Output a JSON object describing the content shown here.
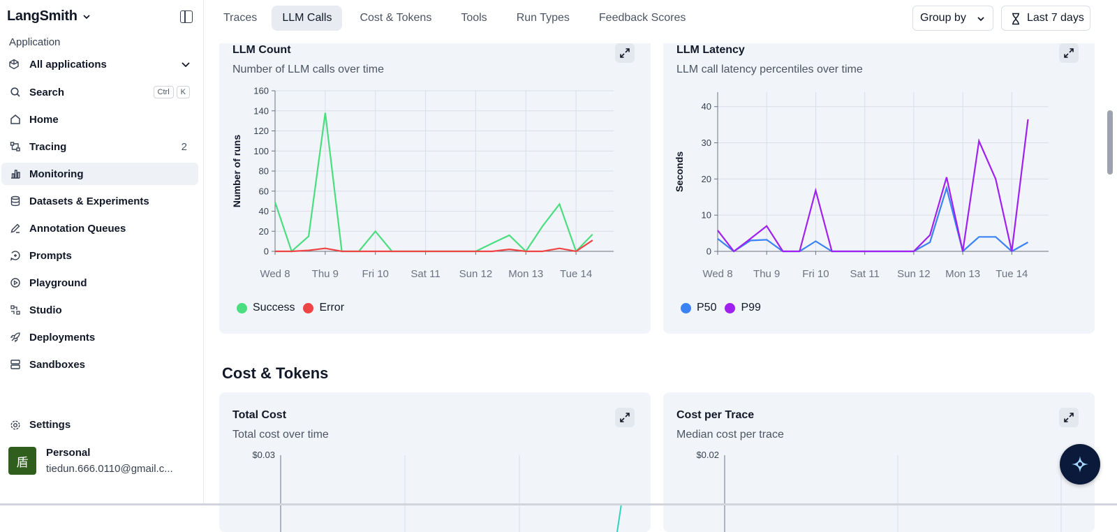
{
  "sidebar": {
    "brand": "LangSmith",
    "application_label": "Application",
    "application_value": "All applications",
    "items": [
      {
        "label": "Search",
        "shortcut": [
          "Ctrl",
          "K"
        ]
      },
      {
        "label": "Home"
      },
      {
        "label": "Tracing",
        "count": "2"
      },
      {
        "label": "Monitoring",
        "active": true
      },
      {
        "label": "Datasets & Experiments"
      },
      {
        "label": "Annotation Queues"
      },
      {
        "label": "Prompts"
      },
      {
        "label": "Playground"
      },
      {
        "label": "Studio"
      },
      {
        "label": "Deployments"
      },
      {
        "label": "Sandboxes"
      }
    ],
    "settings": "Settings",
    "account": {
      "avatar_char": "盾",
      "name": "Personal",
      "email": "tiedun.666.0110@gmail.c..."
    }
  },
  "topbar": {
    "tabs": [
      "Traces",
      "LLM Calls",
      "Cost & Tokens",
      "Tools",
      "Run Types",
      "Feedback Scores"
    ],
    "active_tab": "LLM Calls",
    "group_by": "Group by",
    "range": "Last 7 days"
  },
  "cards": {
    "llm_count": {
      "title": "LLM Count",
      "subtitle": "Number of LLM calls over time"
    },
    "llm_latency": {
      "title": "LLM Latency",
      "subtitle": "LLM call latency percentiles over time"
    },
    "total_cost": {
      "title": "Total Cost",
      "subtitle": "Total cost over time"
    },
    "cost_per_trace": {
      "title": "Cost per Trace",
      "subtitle": "Median cost per trace"
    }
  },
  "section_cost_tokens": "Cost & Tokens",
  "colors": {
    "success": "#4ade80",
    "error": "#ef4444",
    "p50": "#3b82f6",
    "p99": "#a020f0",
    "active_bg": "#eef1f6"
  },
  "chart_data": [
    {
      "type": "line",
      "title": "LLM Count",
      "ylabel": "Number of runs",
      "ylim": [
        0,
        160
      ],
      "yticks": [
        0,
        20,
        40,
        60,
        80,
        100,
        120,
        140,
        160
      ],
      "x_tick_labels": [
        "Wed 8",
        "Thu 9",
        "Fri 10",
        "Sat 11",
        "Sun 12",
        "Mon 13",
        "Tue 14"
      ],
      "x": [
        0,
        0.33,
        0.67,
        1,
        1.33,
        1.67,
        2,
        2.33,
        2.67,
        3,
        3.33,
        3.67,
        4,
        4.33,
        4.67,
        5,
        5.33,
        5.67,
        6,
        6.33,
        6.67
      ],
      "series": [
        {
          "name": "Success",
          "color": "#4ade80",
          "values": [
            49,
            0,
            15,
            138,
            0,
            0,
            20,
            0,
            0,
            0,
            0,
            0,
            0,
            8,
            16,
            0,
            25,
            47,
            0,
            17,
            null
          ]
        },
        {
          "name": "Error",
          "color": "#ef4444",
          "values": [
            0,
            0,
            1,
            3,
            0,
            0,
            0,
            0,
            0,
            0,
            0,
            0,
            0,
            0,
            2,
            0,
            0,
            3,
            0,
            11,
            null
          ]
        }
      ],
      "legend": "bottom-left",
      "grid": true
    },
    {
      "type": "line",
      "title": "LLM Latency",
      "ylabel": "Seconds",
      "ylim": [
        0,
        44
      ],
      "yticks": [
        0,
        10,
        20,
        30,
        40
      ],
      "x_tick_labels": [
        "Wed 8",
        "Thu 9",
        "Fri 10",
        "Sat 11",
        "Sun 12",
        "Mon 13",
        "Tue 14"
      ],
      "x": [
        0,
        0.33,
        0.67,
        1,
        1.33,
        1.67,
        2,
        2.33,
        2.67,
        3,
        3.33,
        3.67,
        4,
        4.33,
        4.67,
        5,
        5.33,
        5.67,
        6,
        6.33,
        6.67
      ],
      "series": [
        {
          "name": "P50",
          "color": "#3b82f6",
          "values": [
            3.5,
            0,
            3,
            3.2,
            0,
            0,
            2.8,
            0,
            0,
            0,
            0,
            0,
            0,
            2.5,
            17.5,
            0,
            4,
            4,
            0,
            2.5,
            null
          ]
        },
        {
          "name": "P99",
          "color": "#a020f0",
          "values": [
            5.8,
            0,
            3.5,
            7,
            0,
            0,
            16.8,
            0,
            0,
            0,
            0,
            0,
            0,
            4.5,
            20.5,
            0,
            30.5,
            20,
            0,
            36.5,
            null
          ]
        }
      ],
      "legend": "bottom-left",
      "grid": true
    },
    {
      "type": "line",
      "title": "Total Cost",
      "ylabel": "",
      "ytick_top": "$0.03",
      "series": [
        {
          "name": "",
          "color": "#2dd4bf",
          "values": []
        }
      ]
    },
    {
      "type": "line",
      "title": "Cost per Trace",
      "ylabel": "",
      "ytick_top": "$0.02",
      "series": []
    }
  ]
}
